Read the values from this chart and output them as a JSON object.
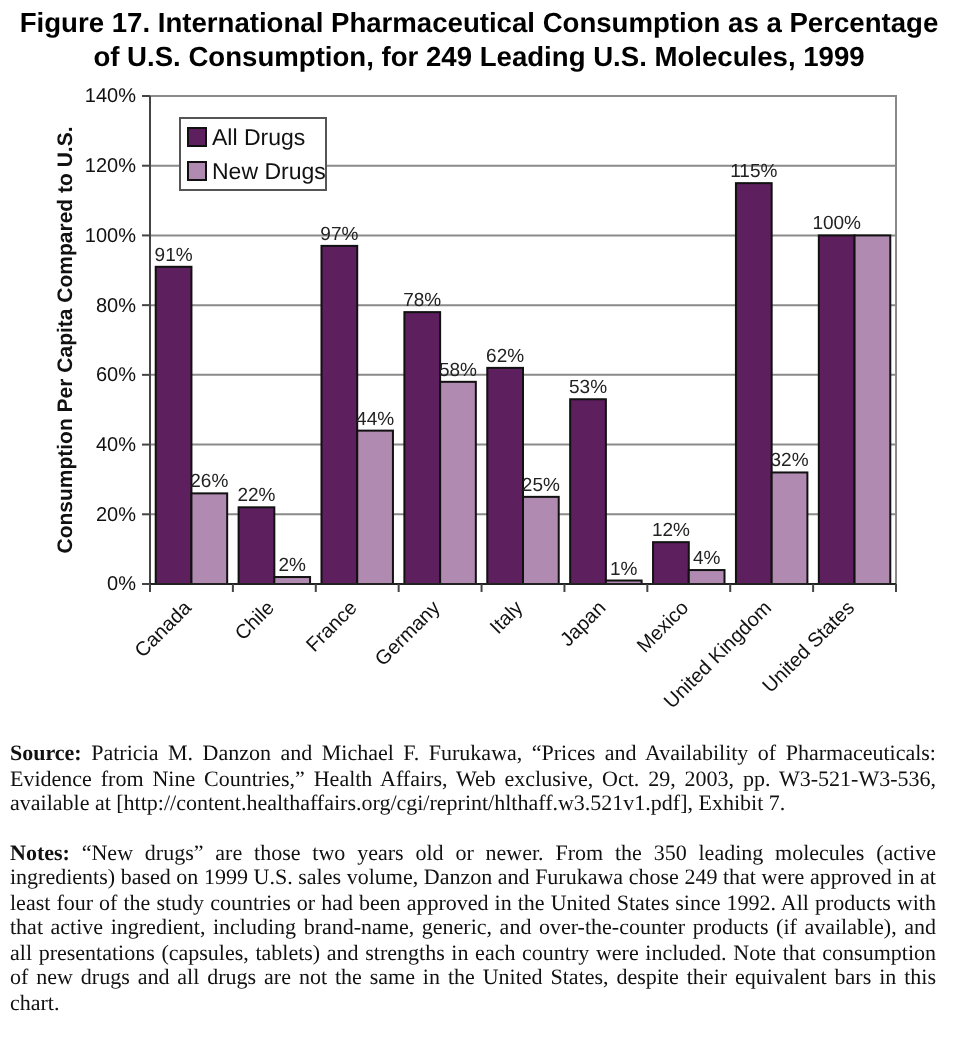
{
  "chart_data": {
    "type": "bar",
    "title": "Figure 17. International Pharmaceutical Consumption as a Percentage of U.S. Consumption, for 249 Leading U.S. Molecules, 1999",
    "ylabel": "Consumption Per Capita Compared to U.S.",
    "categories": [
      "Canada",
      "Chile",
      "France",
      "Germany",
      "Italy",
      "Japan",
      "Mexico",
      "United Kingdom",
      "United States"
    ],
    "series": [
      {
        "name": "All Drugs",
        "color": "#5e1f5e",
        "values": [
          91,
          22,
          97,
          78,
          62,
          53,
          12,
          115,
          100
        ],
        "value_labels": [
          "91%",
          "22%",
          "97%",
          "78%",
          "62%",
          "53%",
          "12%",
          "115%",
          "100%"
        ]
      },
      {
        "name": "New Drugs",
        "color": "#b08ab0",
        "values": [
          26,
          2,
          44,
          58,
          25,
          1,
          4,
          32,
          100
        ],
        "value_labels": [
          "26%",
          "2%",
          "44%",
          "58%",
          "25%",
          "1%",
          "4%",
          "32%",
          null
        ]
      }
    ],
    "ylim": [
      0,
      140
    ],
    "yticks": [
      {
        "value": 0,
        "label": "0%"
      },
      {
        "value": 20,
        "label": "20%"
      },
      {
        "value": 40,
        "label": "40%"
      },
      {
        "value": 60,
        "label": "60%"
      },
      {
        "value": 80,
        "label": "80%"
      },
      {
        "value": 100,
        "label": "100%"
      },
      {
        "value": 120,
        "label": "120%"
      },
      {
        "value": 140,
        "label": "140%"
      }
    ],
    "grid": "y",
    "legend": "top left",
    "annotations": [
      "Source: Patricia M. Danzon and Michael F. Furukawa, “Prices and Availability of Pharmaceuticals: Evidence from Nine Countries,” Health Affairs, Web exclusive, Oct. 29, 2003, pp. W3-521-W3-536, available at [http://content.healthaffairs.org/cgi/reprint/hlthaff.w3.521v1.pdf], Exhibit 7.",
      "Notes: “New drugs” are those two years old or newer. From the 350 leading molecules (active ingredients) based on 1999 U.S. sales volume, Danzon and Furukawa chose 249 that were approved in at least four of the study countries or had been approved in the United States since 1992. All products with that active ingredient, including brand-name, generic, and over-the-counter products (if available), and all presentations (capsules, tablets) and strengths in each country were included. Note that consumption of new drugs and all drugs are not the same in the United States, despite their equivalent bars in this chart."
    ]
  }
}
